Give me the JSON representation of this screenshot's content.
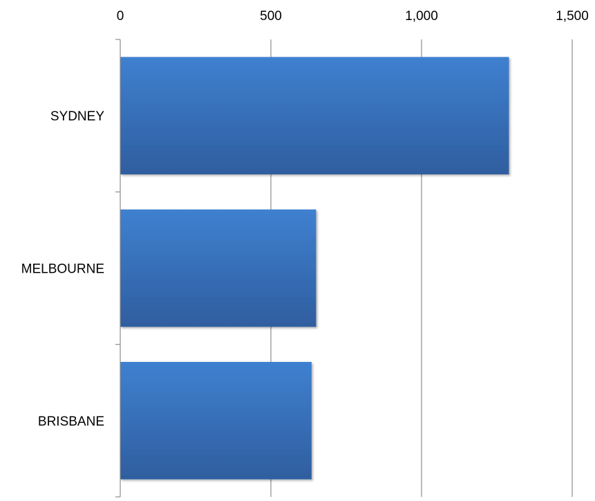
{
  "chart_data": {
    "type": "bar",
    "orientation": "horizontal",
    "categories": [
      "SYDNEY",
      "MELBOURNE",
      "BRISBANE"
    ],
    "values": [
      1290,
      650,
      635
    ],
    "xlim": [
      0,
      1500
    ],
    "x_ticks": [
      0,
      500,
      1000,
      1500
    ],
    "x_tick_labels": [
      "0",
      "500",
      "1,000",
      "1,500"
    ],
    "x_axis_position": "top",
    "grid": true,
    "legend": false,
    "bar_color": "#3A73BF",
    "bar_color_light": "#3F80D0",
    "bar_color_dark": "#2F5E9F"
  }
}
